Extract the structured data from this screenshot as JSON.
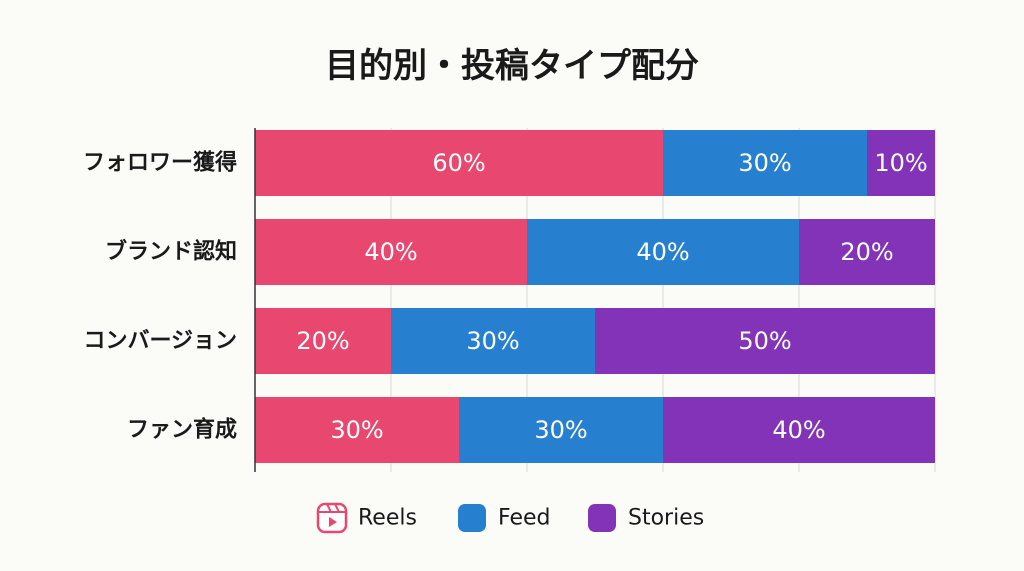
{
  "chart_data": {
    "type": "bar",
    "orientation": "horizontal",
    "stacked": true,
    "title": "目的別・投稿タイプ配分",
    "xlabel": "",
    "ylabel": "",
    "xlim": [
      0,
      100
    ],
    "grid": true,
    "legend_position": "bottom",
    "categories": [
      "フォロワー獲得",
      "ブランド認知",
      "コンバージョン",
      "ファン育成"
    ],
    "series": [
      {
        "name": "Reels",
        "color": "#e8476f",
        "icon": "reels-icon",
        "values": [
          60,
          40,
          20,
          30
        ]
      },
      {
        "name": "Feed",
        "color": "#2680cf",
        "values": [
          30,
          40,
          30,
          30
        ]
      },
      {
        "name": "Stories",
        "color": "#8333b8",
        "values": [
          10,
          20,
          50,
          40
        ]
      }
    ],
    "value_suffix": "%"
  }
}
